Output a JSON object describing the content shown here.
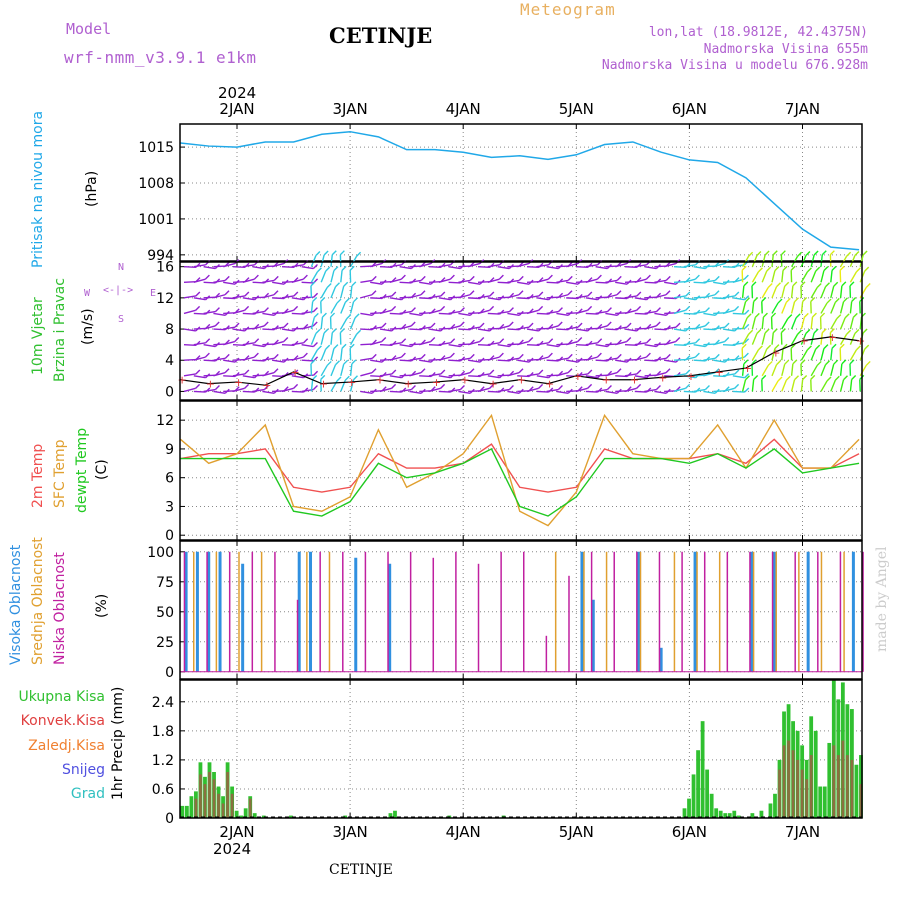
{
  "header": {
    "model_label": "Model",
    "model_name": "wrf-nmm_v3.9.1 e1km",
    "title": "CETINJE",
    "product": "Meteogram",
    "lonlat": "lon,lat (18.9812E, 42.4375N)",
    "elevation": "Nadmorska Visina 655m",
    "model_elevation": "Nadmorska Visina u modelu 676.928m",
    "watermark": "made by Angel",
    "footer": "CETINJE"
  },
  "colors": {
    "header_purple": "#b060d0",
    "meteogram_orange": "#e8b060",
    "pressure": "#20a8e8",
    "wind_green": "#30c030",
    "temp2m": "#f05050",
    "sfc_temp": "#e0a030",
    "dewpoint": "#20c820",
    "high_cloud": "#3090e0",
    "mid_cloud": "#e0a030",
    "low_cloud": "#c020a0",
    "total_precip": "#30c030",
    "conv_precip": "#e04040",
    "freezing": "#f08030",
    "snow": "#5050e0",
    "hail": "#30c0c0"
  },
  "time_axis": {
    "top_year": "2024",
    "bottom_year": "2024",
    "days": [
      "2JAN",
      "3JAN",
      "4JAN",
      "5JAN",
      "6JAN",
      "7JAN"
    ]
  },
  "panels": {
    "pressure": {
      "label": "Pritisak na nivou mora",
      "unit": "(hPa)"
    },
    "wind": {
      "label1": "10m Vjetar",
      "label2": "Brzina i Pravac",
      "unit": "(m/s)",
      "compass": [
        "N",
        "W",
        "E",
        "S"
      ]
    },
    "temp": {
      "label1": "2m Temp",
      "label2": "SFC Temp",
      "label3": "dewpt Temp",
      "unit": "(C)"
    },
    "cloud": {
      "label1": "Visoka Oblacnost",
      "label2": "Srednja Oblacnost",
      "label3": "Niska Oblacnost",
      "unit": "(%)"
    },
    "precip": {
      "unit": "1hr Precip (mm)",
      "legend": [
        "Ukupna Kisa",
        "Konvek.Kisa",
        "Zaledj.Kisa",
        "Snijeg",
        "Grad"
      ]
    }
  },
  "chart_data": [
    {
      "type": "line",
      "title": "Pritisak na nivou mora",
      "ylabel": "(hPa)",
      "x_days": [
        "2JAN",
        "3JAN",
        "4JAN",
        "5JAN",
        "6JAN",
        "7JAN"
      ],
      "yticks": [
        994,
        1001,
        1008,
        1015
      ],
      "ylim": [
        992.8,
        1019.5
      ],
      "series": [
        {
          "name": "Pritisak na nivou mora",
          "x": [
            0,
            0.25,
            0.5,
            0.75,
            1,
            1.25,
            1.5,
            1.75,
            2,
            2.25,
            2.5,
            2.75,
            3,
            3.25,
            3.5,
            3.75,
            4,
            4.25,
            4.5,
            4.75,
            5,
            5.25,
            5.5,
            5.75,
            6
          ],
          "y": [
            1015.8,
            1015.2,
            1015.0,
            1016.0,
            1016.0,
            1017.5,
            1018.0,
            1017.0,
            1014.5,
            1014.5,
            1014.0,
            1013.0,
            1013.3,
            1012.6,
            1013.5,
            1015.5,
            1016.0,
            1014.0,
            1012.5,
            1012.0,
            1009.0,
            1004.0,
            999.0,
            995.5,
            995.0
          ]
        }
      ]
    },
    {
      "type": "line",
      "title": "10m Vjetar Brzina i Pravac",
      "ylabel": "(m/s)",
      "x_days": [
        "2JAN",
        "3JAN",
        "4JAN",
        "5JAN",
        "6JAN",
        "7JAN"
      ],
      "yticks": [
        0,
        4,
        8,
        12,
        16
      ],
      "ylim": [
        -1.1,
        16.6
      ],
      "series": [
        {
          "name": "10m Vjetar Brzina",
          "x": [
            0,
            0.25,
            0.5,
            0.75,
            1,
            1.25,
            1.5,
            1.75,
            2,
            2.25,
            2.5,
            2.75,
            3,
            3.25,
            3.5,
            3.75,
            4,
            4.25,
            4.5,
            4.75,
            5,
            5.25,
            5.5,
            5.75,
            6
          ],
          "y": [
            1.5,
            1.0,
            1.2,
            0.8,
            2.5,
            1.0,
            1.2,
            1.5,
            1.0,
            1.2,
            1.5,
            1.0,
            1.5,
            1.0,
            2.0,
            1.5,
            1.5,
            1.8,
            2.0,
            2.5,
            3.0,
            5.0,
            6.5,
            7.0,
            6.5
          ]
        }
      ]
    },
    {
      "type": "line",
      "title": "2m Temp / SFC Temp / dewpt Temp",
      "ylabel": "(C)",
      "x_days": [
        "2JAN",
        "3JAN",
        "4JAN",
        "5JAN",
        "6JAN",
        "7JAN"
      ],
      "yticks": [
        0,
        3,
        6,
        9,
        12
      ],
      "ylim": [
        -0.5,
        14.0
      ],
      "series": [
        {
          "name": "2m Temp",
          "x": [
            0,
            0.25,
            0.5,
            0.75,
            1,
            1.25,
            1.5,
            1.75,
            2,
            2.25,
            2.5,
            2.75,
            3,
            3.25,
            3.5,
            3.75,
            4,
            4.25,
            4.5,
            4.75,
            5,
            5.25,
            5.5,
            5.75,
            6
          ],
          "y": [
            8.0,
            8.5,
            8.5,
            9.0,
            5.0,
            4.5,
            5.0,
            8.5,
            7.0,
            7.0,
            7.5,
            9.5,
            5.0,
            4.5,
            5.0,
            9.0,
            8.0,
            8.0,
            8.0,
            8.5,
            7.5,
            10.0,
            7.0,
            7.0,
            8.5
          ]
        },
        {
          "name": "SFC Temp",
          "x": [
            0,
            0.25,
            0.5,
            0.75,
            1,
            1.25,
            1.5,
            1.75,
            2,
            2.25,
            2.5,
            2.75,
            3,
            3.25,
            3.5,
            3.75,
            4,
            4.25,
            4.5,
            4.75,
            5,
            5.25,
            5.5,
            5.75,
            6
          ],
          "y": [
            10.0,
            7.5,
            8.5,
            11.5,
            3.0,
            2.5,
            4.0,
            11.0,
            5.0,
            6.5,
            8.5,
            12.5,
            2.5,
            1.0,
            4.5,
            12.5,
            8.5,
            8.0,
            8.0,
            11.5,
            7.0,
            12.0,
            7.0,
            7.0,
            10.0
          ]
        },
        {
          "name": "dewpt Temp",
          "x": [
            0,
            0.25,
            0.5,
            0.75,
            1,
            1.25,
            1.5,
            1.75,
            2,
            2.25,
            2.5,
            2.75,
            3,
            3.25,
            3.5,
            3.75,
            4,
            4.25,
            4.5,
            4.75,
            5,
            5.25,
            5.5,
            5.75,
            6
          ],
          "y": [
            8.0,
            8.0,
            8.0,
            8.0,
            2.5,
            2.0,
            3.5,
            7.5,
            6.0,
            6.5,
            7.5,
            9.0,
            3.0,
            2.0,
            4.0,
            8.0,
            8.0,
            8.0,
            7.5,
            8.5,
            7.0,
            9.0,
            6.5,
            7.0,
            7.5
          ]
        }
      ]
    },
    {
      "type": "bar",
      "title": "Visoka / Srednja / Niska Oblacnost",
      "ylabel": "(%)",
      "x_days": [
        "2JAN",
        "3JAN",
        "4JAN",
        "5JAN",
        "6JAN",
        "7JAN"
      ],
      "yticks": [
        0,
        25,
        50,
        75,
        100
      ],
      "ylim": [
        -6,
        109
      ],
      "series": [
        {
          "name": "Visoka Oblacnost",
          "x": [
            0.05,
            0.15,
            0.25,
            0.35,
            0.55,
            1.05,
            1.15,
            1.55,
            1.85,
            3.55,
            3.65,
            4.05,
            4.25,
            4.55,
            5.05,
            5.25,
            5.55,
            5.95
          ],
          "y": [
            100,
            100,
            100,
            100,
            90,
            100,
            100,
            95,
            90,
            100,
            60,
            100,
            20,
            100,
            100,
            100,
            100,
            100
          ]
        },
        {
          "name": "Srednja Oblacnost",
          "x": [
            0.1,
            0.3,
            0.5,
            0.7,
            1.1,
            1.3,
            3.3,
            3.55,
            3.75,
            4.05,
            4.35,
            4.55,
            4.75,
            5.05,
            5.25,
            5.45,
            5.65,
            5.85
          ],
          "y": [
            100,
            100,
            100,
            100,
            100,
            100,
            100,
            100,
            100,
            100,
            100,
            100,
            100,
            100,
            100,
            100,
            100,
            100
          ]
        },
        {
          "name": "Niska Oblacnost",
          "x": [
            0.0,
            0.2,
            0.4,
            0.6,
            0.8,
            1.0,
            1.2,
            1.4,
            1.6,
            1.8,
            2.0,
            2.2,
            2.4,
            2.6,
            2.8,
            3.0,
            3.2,
            3.4,
            3.6,
            3.8,
            4.0,
            4.2,
            4.4,
            4.6,
            4.8,
            5.0,
            5.2,
            5.4,
            5.6,
            5.8,
            6.0
          ],
          "y": [
            100,
            100,
            100,
            100,
            100,
            60,
            100,
            100,
            100,
            100,
            100,
            95,
            100,
            90,
            100,
            100,
            30,
            80,
            100,
            100,
            100,
            100,
            100,
            100,
            100,
            100,
            100,
            100,
            100,
            100,
            100
          ]
        }
      ]
    },
    {
      "type": "bar",
      "title": "1hr Precip",
      "ylabel": "1hr Precip (mm)",
      "x_days": [
        "2JAN",
        "3JAN",
        "4JAN",
        "5JAN",
        "6JAN",
        "7JAN"
      ],
      "yticks": [
        0,
        0.6,
        1.2,
        1.8,
        2.4
      ],
      "ylim": [
        0,
        2.85
      ],
      "series": [
        {
          "name": "Ukupna Kisa",
          "x": [
            0.0,
            0.04,
            0.08,
            0.12,
            0.16,
            0.2,
            0.24,
            0.28,
            0.32,
            0.36,
            0.4,
            0.44,
            0.48,
            0.52,
            0.56,
            0.6,
            0.64,
            0.72,
            0.96,
            1.44,
            1.84,
            1.88,
            2.36,
            2.84,
            4.44,
            4.48,
            4.52,
            4.56,
            4.6,
            4.64,
            4.68,
            4.72,
            4.76,
            4.8,
            4.84,
            4.88,
            4.92,
            5.04,
            5.12,
            5.2,
            5.24,
            5.28,
            5.32,
            5.36,
            5.4,
            5.44,
            5.48,
            5.52,
            5.56,
            5.6,
            5.64,
            5.68,
            5.72,
            5.76,
            5.8,
            5.84,
            5.88,
            5.92,
            5.96,
            6.0
          ],
          "y": [
            0.25,
            0.25,
            0.45,
            0.55,
            1.15,
            0.85,
            1.15,
            0.95,
            0.65,
            0.45,
            1.15,
            0.65,
            0.15,
            0.05,
            0.2,
            0.45,
            0.1,
            0.05,
            0.05,
            0.05,
            0.1,
            0.15,
            0.05,
            0.05,
            0.2,
            0.4,
            0.9,
            1.4,
            2.0,
            1.0,
            0.5,
            0.2,
            0.15,
            0.1,
            0.1,
            0.15,
            0.05,
            0.1,
            0.15,
            0.3,
            0.5,
            1.2,
            2.2,
            2.35,
            2.0,
            1.8,
            1.5,
            1.2,
            2.1,
            1.8,
            0.65,
            0.65,
            1.55,
            2.85,
            2.45,
            2.8,
            2.35,
            2.25,
            1.1,
            1.3
          ]
        },
        {
          "name": "Konvek.Kisa",
          "x": [
            0.12,
            0.16,
            0.2,
            0.24,
            0.28,
            0.32,
            0.36,
            0.4,
            0.44,
            0.6,
            5.28,
            5.32,
            5.36,
            5.4,
            5.44,
            5.48,
            5.52,
            5.56,
            5.76,
            5.8,
            5.84,
            5.88,
            5.92,
            6.0
          ],
          "y": [
            0.4,
            0.9,
            0.7,
            0.95,
            0.8,
            0.5,
            0.3,
            0.95,
            0.5,
            0.4,
            1.0,
            1.5,
            1.6,
            1.4,
            1.2,
            1.0,
            0.8,
            1.3,
            1.5,
            1.3,
            1.6,
            1.3,
            1.2,
            0.7
          ]
        }
      ]
    }
  ]
}
